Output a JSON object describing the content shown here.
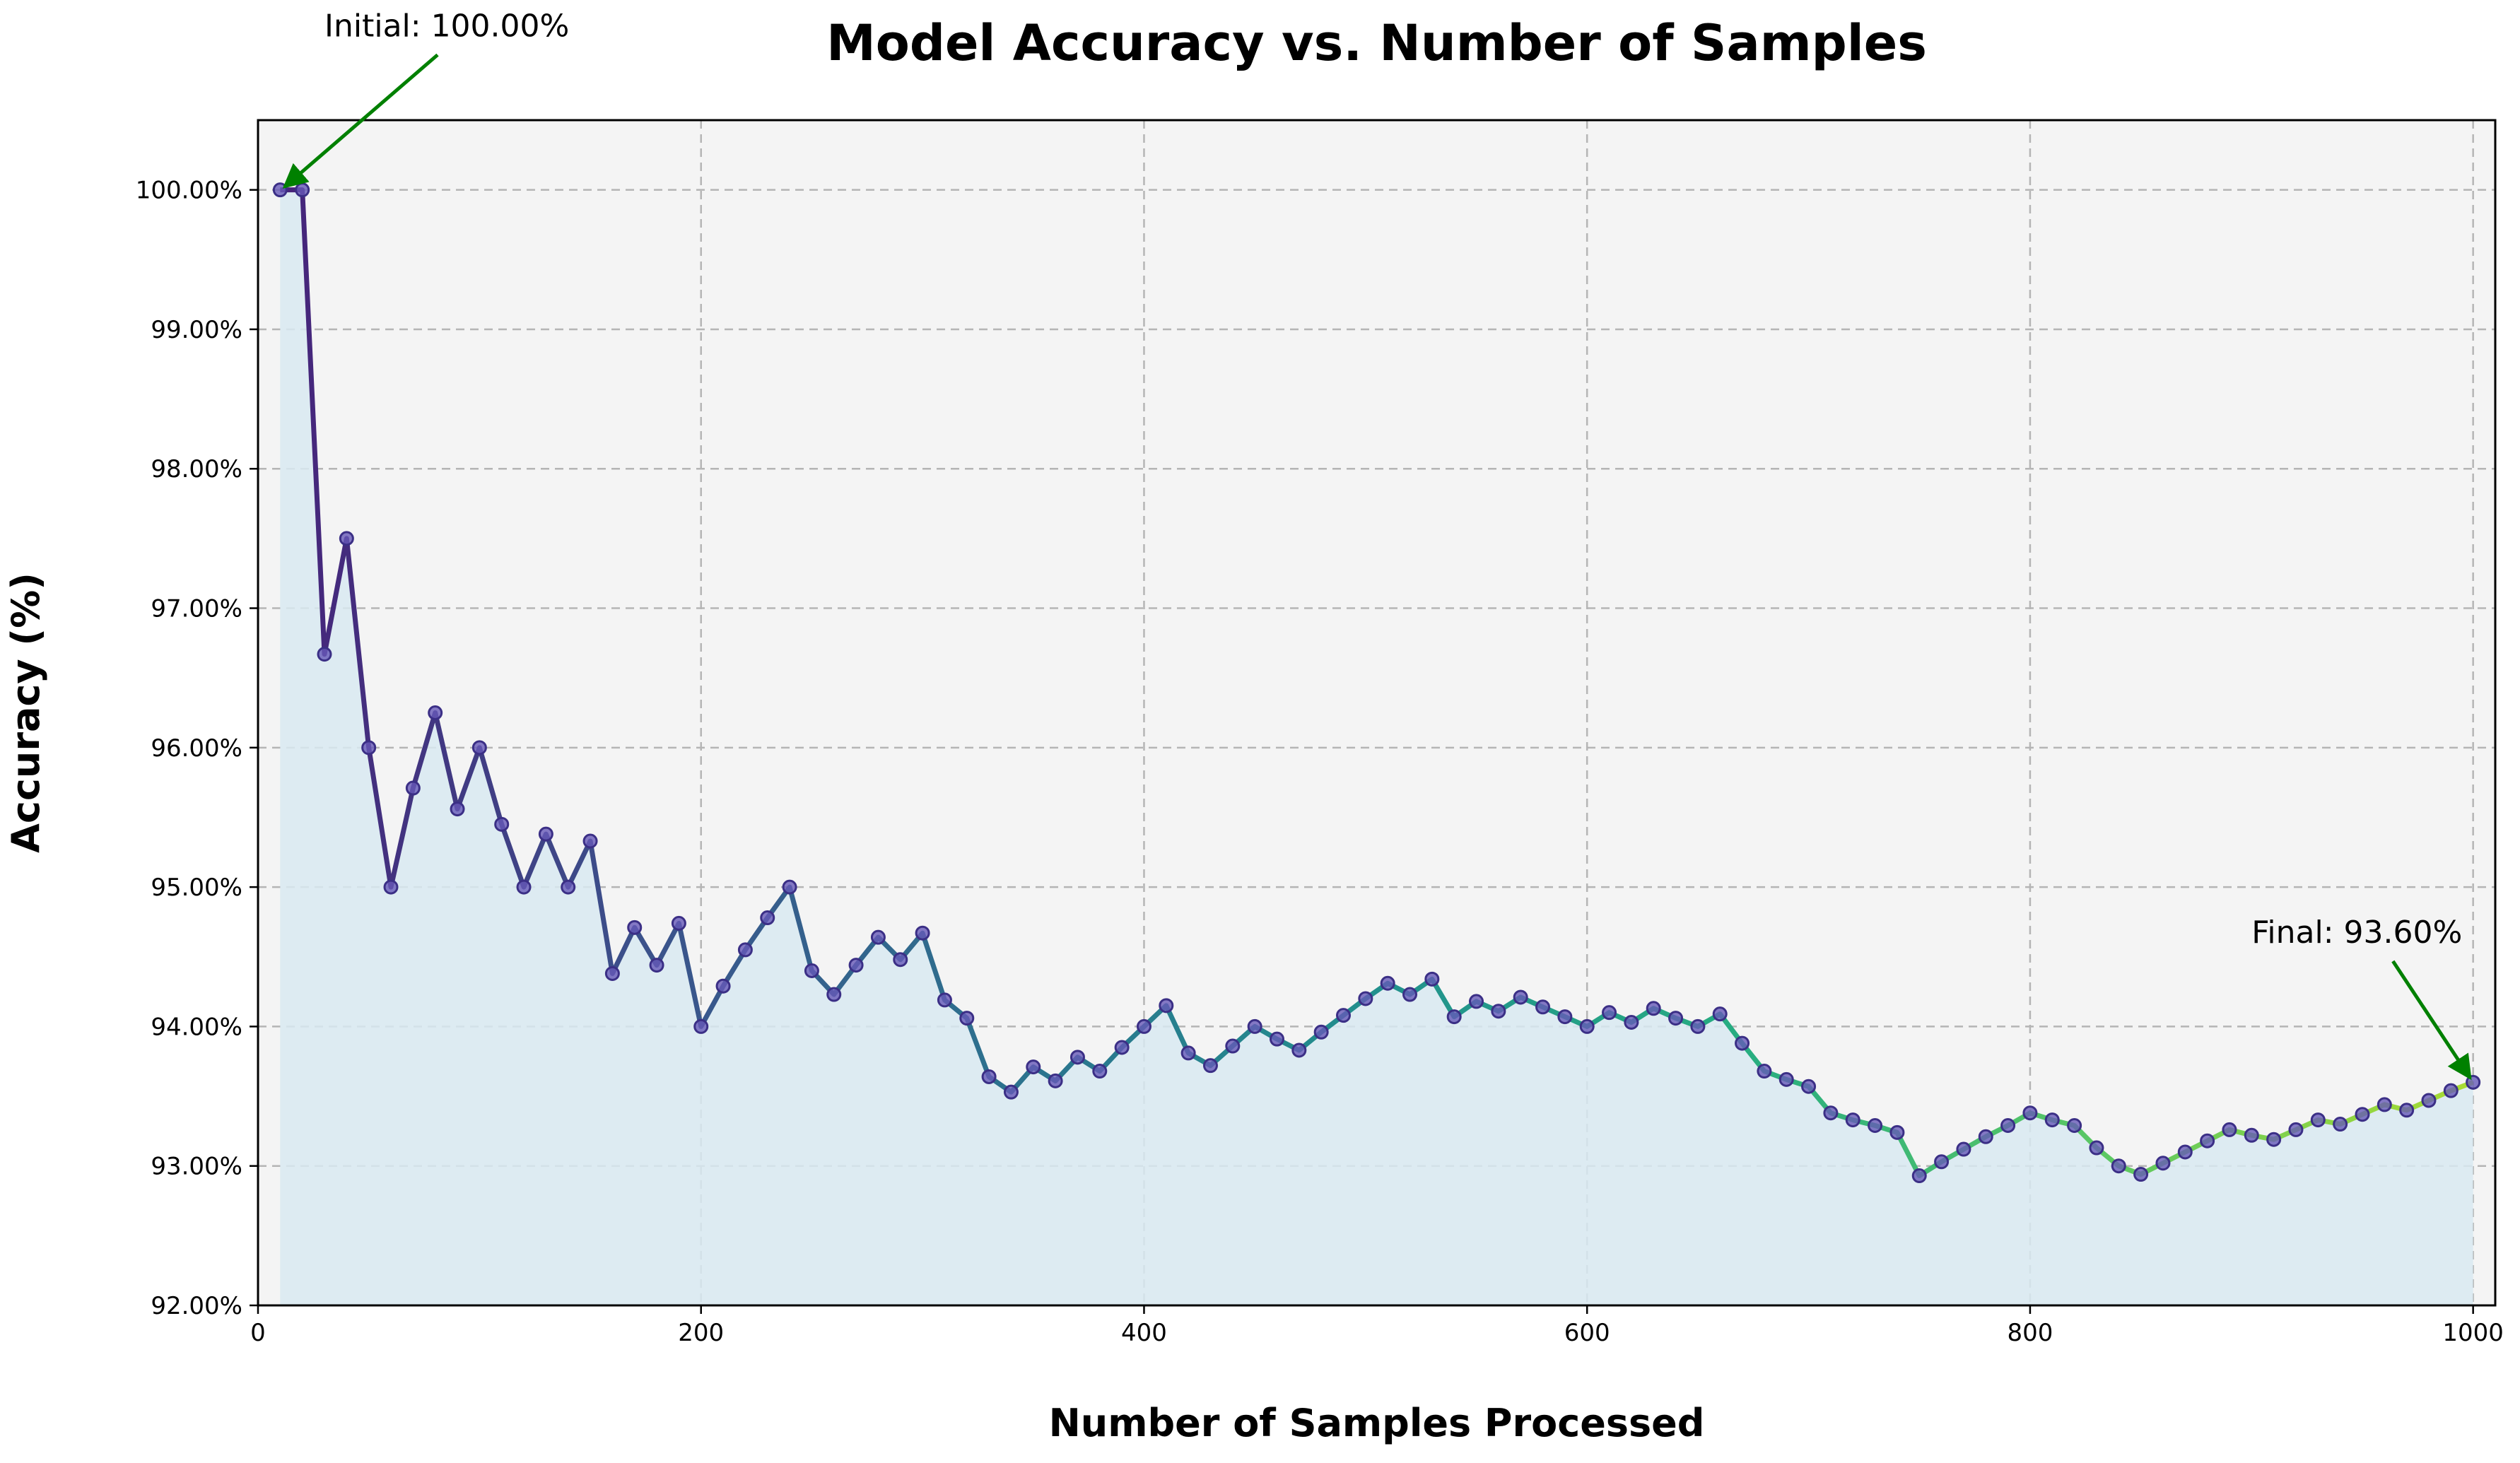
{
  "chart_data": {
    "type": "line",
    "title": "Model Accuracy vs. Number of Samples",
    "xlabel": "Number of Samples Processed",
    "ylabel": "Accuracy (%)",
    "xlim": [
      0,
      1010
    ],
    "ylim": [
      92.0,
      100.5
    ],
    "xticks": [
      0,
      200,
      400,
      600,
      800,
      1000
    ],
    "xtick_labels": [
      "0",
      "200",
      "400",
      "600",
      "800",
      "1000"
    ],
    "yticks": [
      92,
      93,
      94,
      95,
      96,
      97,
      98,
      99,
      100
    ],
    "ytick_labels": [
      "92.00%",
      "93.00%",
      "94.00%",
      "95.00%",
      "96.00%",
      "97.00%",
      "98.00%",
      "99.00%",
      "100.00%"
    ],
    "grid": true,
    "filled_area": true,
    "x": [
      10,
      20,
      30,
      40,
      50,
      60,
      70,
      80,
      90,
      100,
      110,
      120,
      130,
      140,
      150,
      160,
      170,
      180,
      190,
      200,
      210,
      220,
      230,
      240,
      250,
      260,
      270,
      280,
      290,
      300,
      310,
      320,
      330,
      340,
      350,
      360,
      370,
      380,
      390,
      400,
      410,
      420,
      430,
      440,
      450,
      460,
      470,
      480,
      490,
      500,
      510,
      520,
      530,
      540,
      550,
      560,
      570,
      580,
      590,
      600,
      610,
      620,
      630,
      640,
      650,
      660,
      670,
      680,
      690,
      700,
      710,
      720,
      730,
      740,
      750,
      760,
      770,
      780,
      790,
      800,
      810,
      820,
      830,
      840,
      850,
      860,
      870,
      880,
      890,
      900,
      910,
      920,
      930,
      940,
      950,
      960,
      970,
      980,
      990,
      1000
    ],
    "y": [
      100.0,
      100.0,
      96.67,
      97.5,
      96.0,
      95.0,
      95.71,
      96.25,
      95.56,
      96.0,
      95.45,
      95.0,
      95.38,
      95.0,
      95.33,
      94.38,
      94.71,
      94.44,
      94.74,
      94.0,
      94.29,
      94.55,
      94.78,
      95.0,
      94.4,
      94.23,
      94.44,
      94.64,
      94.48,
      94.67,
      94.19,
      94.06,
      93.64,
      93.53,
      93.71,
      93.61,
      93.78,
      93.68,
      93.85,
      94.0,
      94.15,
      93.81,
      93.72,
      93.86,
      94.0,
      93.91,
      93.83,
      93.96,
      94.08,
      94.2,
      94.31,
      94.23,
      94.34,
      94.07,
      94.18,
      94.11,
      94.21,
      94.14,
      94.07,
      94.0,
      94.1,
      94.03,
      94.13,
      94.06,
      94.0,
      94.09,
      93.88,
      93.68,
      93.62,
      93.57,
      93.38,
      93.33,
      93.29,
      93.24,
      92.93,
      93.03,
      93.12,
      93.21,
      93.29,
      93.38,
      93.33,
      93.29,
      93.13,
      93.0,
      92.94,
      93.02,
      93.1,
      93.18,
      93.26,
      93.22,
      93.19,
      93.26,
      93.33,
      93.3,
      93.37,
      93.44,
      93.4,
      93.47,
      93.54,
      93.6
    ],
    "annotations": [
      {
        "text": "Initial: 100.00%",
        "x": 10,
        "y": 100.0,
        "text_x": 30,
        "text_y": 101.1
      },
      {
        "text": "Final: 93.60%",
        "x": 1000,
        "y": 93.6,
        "text_x": 900,
        "text_y": 94.6
      }
    ],
    "colors": {
      "plot_background": "#f4f4f4",
      "fill": "#d8e9f1",
      "arrow": "#008000",
      "marker_fill": "#6659b8",
      "marker_edge": "#3b2f86",
      "line_gradient": [
        "#46237a",
        "#3b528b",
        "#2c728e",
        "#21908d",
        "#27ad81",
        "#5cc863",
        "#aadc32"
      ]
    }
  }
}
